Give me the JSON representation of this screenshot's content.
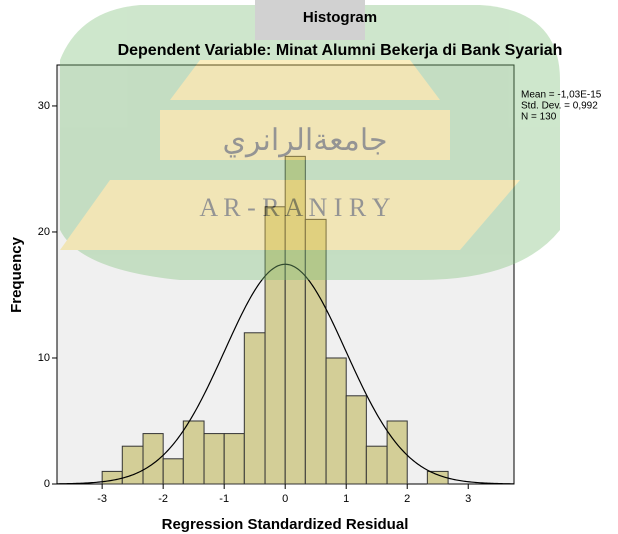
{
  "chart_data": {
    "type": "histogram",
    "title": "Histogram",
    "subtitle": "Dependent Variable: Minat Alumni Bekerja di Bank Syariah",
    "x_label": "Regression Standardized Residual",
    "y_label": "Frequency",
    "bins": [
      -3,
      -2.67,
      -2.33,
      -2,
      -1.67,
      -1.33,
      -1,
      -0.67,
      -0.33,
      0,
      0.33,
      0.67,
      1,
      1.33,
      1.67,
      2,
      2.33,
      2.67
    ],
    "counts": [
      1,
      3,
      4,
      2,
      5,
      4,
      4,
      12,
      22,
      26,
      21,
      10,
      7,
      3,
      5,
      0,
      1
    ],
    "color": "#d3ce97",
    "xlim": [
      -3.74,
      3.75
    ],
    "xticks": [
      -3,
      -2,
      -1,
      0,
      1,
      2,
      3
    ],
    "ylim": [
      0,
      33.25
    ],
    "yticks": [
      0,
      10,
      20,
      30
    ],
    "grid": false,
    "stats": [
      {
        "value": -1.03e-15,
        "label": "Mean = -1,03E-15"
      },
      {
        "value": 0.992,
        "label": "Std. Dev. = 0,992"
      },
      {
        "value": 130,
        "label": "N = 130"
      }
    ],
    "watermark": {
      "arabic": "جامعةالرانري",
      "latin": "A R - R A N I R Y"
    }
  }
}
